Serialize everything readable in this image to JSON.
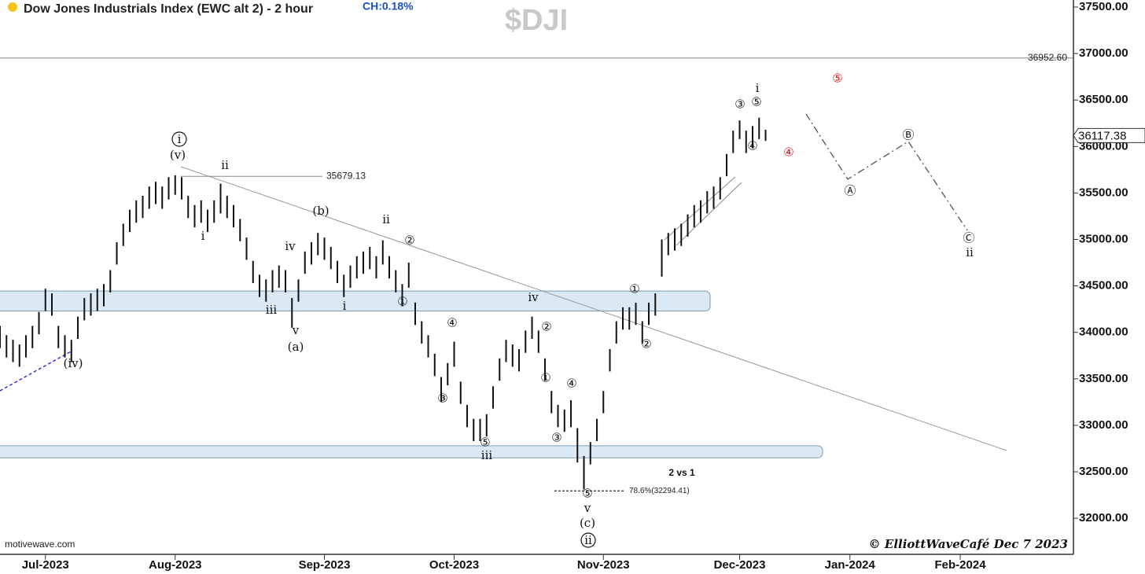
{
  "chart_data": {
    "type": "ohlc",
    "title": "Dow Jones Industrials Index (EWC alt 2) - 2 hour",
    "change": "CH:0.18%",
    "symbol": "$DJI",
    "source": "motivewave.com",
    "credit": "© ElliottWaveCafé  Dec 7 2023",
    "xlim": [
      0,
      165.45
    ],
    "xticks": [
      {
        "value": 7,
        "label": "Jul-2023"
      },
      {
        "value": 27,
        "label": "Aug-2023"
      },
      {
        "value": 50,
        "label": "Sep-2023"
      },
      {
        "value": 70,
        "label": "Oct-2023"
      },
      {
        "value": 93,
        "label": "Nov-2023"
      },
      {
        "value": 114,
        "label": "Dec-2023"
      },
      {
        "value": 131,
        "label": "Jan-2024"
      },
      {
        "value": 148,
        "label": "Feb-2024"
      }
    ],
    "ylim": [
      31612,
      37576
    ],
    "yticks": [
      {
        "value": 32000,
        "label": "32000.00"
      },
      {
        "value": 32500,
        "label": "32500.00"
      },
      {
        "value": 33000,
        "label": "33000.00"
      },
      {
        "value": 33500,
        "label": "33500.00"
      },
      {
        "value": 34000,
        "label": "34000.00"
      },
      {
        "value": 34500,
        "label": "34500.00"
      },
      {
        "value": 35000,
        "label": "35000.00"
      },
      {
        "value": 35500,
        "label": "35500.00"
      },
      {
        "value": 36000,
        "label": "36000.00"
      },
      {
        "value": 36500,
        "label": "36500.00"
      },
      {
        "value": 37000,
        "label": "37000.00"
      },
      {
        "value": 37500,
        "label": "37500.00"
      }
    ],
    "color": "#111111",
    "bars": {
      "x": [
        0,
        1,
        2,
        3,
        4,
        5,
        6,
        7,
        8,
        9,
        10,
        11,
        12,
        13,
        14,
        15,
        16,
        17,
        18,
        19,
        20,
        21,
        22,
        23,
        24,
        25,
        26,
        27,
        28,
        29,
        30,
        31,
        32,
        33,
        34,
        35,
        36,
        37,
        38,
        39,
        40,
        41,
        42,
        43,
        44,
        45,
        46,
        47,
        48,
        49,
        50,
        51,
        52,
        53,
        54,
        55,
        56,
        57,
        58,
        59,
        60,
        61,
        62,
        63,
        64,
        65,
        66,
        67,
        68,
        69,
        70,
        71,
        72,
        73,
        74,
        75,
        76,
        77,
        78,
        79,
        80,
        81,
        82,
        83,
        84,
        85,
        86,
        87,
        88,
        89,
        90,
        91,
        92,
        93,
        94,
        95,
        96,
        97,
        98,
        99,
        100,
        101,
        102,
        103,
        104,
        105,
        106,
        107,
        108,
        109,
        110,
        111,
        112,
        113,
        114,
        115,
        116,
        117,
        118
      ],
      "high": [
        34070,
        33970,
        33920,
        33870,
        33970,
        34070,
        34220,
        34470,
        34420,
        34070,
        33970,
        33920,
        34170,
        34370,
        34420,
        34470,
        34520,
        34670,
        34970,
        35170,
        35320,
        35420,
        35470,
        35570,
        35620,
        35570,
        35670,
        35690,
        35670,
        35470,
        35370,
        35420,
        35320,
        35420,
        35600,
        35470,
        35370,
        35220,
        35020,
        34770,
        34620,
        34570,
        34670,
        34720,
        34670,
        34370,
        34570,
        34870,
        34970,
        35070,
        35020,
        34920,
        34770,
        34620,
        34720,
        34820,
        34870,
        34920,
        34820,
        34990,
        34820,
        34670,
        34520,
        34750,
        34320,
        34120,
        33970,
        33770,
        33520,
        33670,
        33900,
        33470,
        33220,
        33070,
        33070,
        33120,
        33420,
        33720,
        33920,
        33870,
        33820,
        34020,
        34170,
        34020,
        33720,
        33370,
        33220,
        33170,
        33270,
        32970,
        32670,
        32820,
        33070,
        33370,
        33820,
        34120,
        34270,
        34270,
        34320,
        34120,
        34320,
        34420,
        35000,
        35070,
        35120,
        35170,
        35270,
        35370,
        35420,
        35520,
        35570,
        35670,
        35920,
        36170,
        36280,
        36170,
        36220,
        36310,
        36180
      ],
      "low": [
        33830,
        33730,
        33680,
        33630,
        33730,
        33830,
        33980,
        34230,
        34180,
        33830,
        33730,
        33680,
        33930,
        34130,
        34180,
        34230,
        34280,
        34430,
        34730,
        34930,
        35080,
        35180,
        35230,
        35330,
        35380,
        35330,
        35430,
        35480,
        35430,
        35230,
        35130,
        35180,
        35080,
        35180,
        35280,
        35230,
        35130,
        34980,
        34780,
        34530,
        34380,
        34330,
        34430,
        34480,
        34430,
        34050,
        34330,
        34630,
        34730,
        34830,
        34780,
        34680,
        34530,
        34380,
        34480,
        34580,
        34630,
        34680,
        34580,
        34730,
        34580,
        34430,
        34280,
        34480,
        34080,
        33880,
        33730,
        33530,
        33250,
        33430,
        33630,
        33230,
        32980,
        32830,
        32830,
        32880,
        33180,
        33480,
        33680,
        33630,
        33580,
        33780,
        33930,
        33780,
        33480,
        33130,
        32980,
        32930,
        32980,
        32600,
        32310,
        32580,
        32830,
        33130,
        33580,
        33880,
        34030,
        34030,
        34080,
        33880,
        34080,
        34180,
        34600,
        34830,
        34880,
        34930,
        35030,
        35130,
        35180,
        35280,
        35330,
        35430,
        35680,
        35930,
        36080,
        35930,
        35980,
        36080,
        36060
      ]
    },
    "zones": [
      {
        "low": 34230,
        "high": 34445
      },
      {
        "low": 32650,
        "high": 32780
      }
    ],
    "zone_color": "#dbe9f4",
    "reference_lines": [
      {
        "value": 36952.6,
        "label": "36952.60"
      },
      {
        "value": 35679.13,
        "label": "35679.13"
      },
      {
        "value": 32294.41,
        "label": "78.6%(32294.41)"
      }
    ],
    "last_price": {
      "value": 36117.38,
      "label": "36117.38"
    },
    "annotations": [
      "i",
      "(v)",
      "ii",
      "i",
      "(b)",
      "ii",
      "②",
      "iv",
      "iii",
      "v",
      "(a)",
      "i",
      "①",
      "(iv)",
      "④",
      "③",
      "⑤",
      "iii",
      "iv",
      "②",
      "①",
      "④",
      "③",
      "⑤",
      "v",
      "(c)",
      "ii",
      "①",
      "②",
      "2 vs 1",
      "③",
      "⑤",
      "i",
      "④",
      "⑤",
      "④",
      "Ⓑ",
      "Ⓐ",
      "Ⓒ",
      "ii"
    ]
  }
}
